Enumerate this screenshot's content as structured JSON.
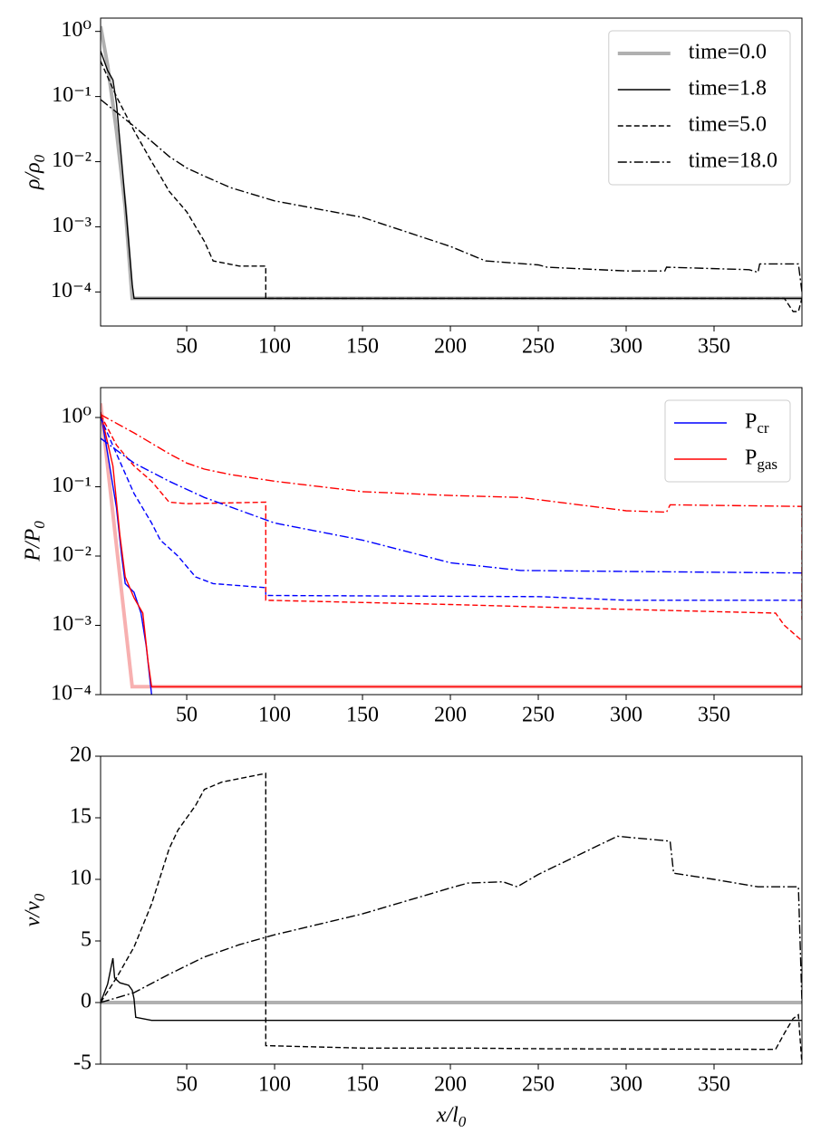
{
  "chart_data": [
    {
      "type": "line",
      "ylabel": "ρ/ρ_0",
      "yscale": "log",
      "legend": "upper right",
      "xlim": [
        1,
        400
      ],
      "xticks": [
        50,
        100,
        150,
        200,
        250,
        300,
        350
      ],
      "ylim": [
        3e-05,
        1.6
      ],
      "yticks": [
        {
          "value": 0.0001,
          "label": "10⁻⁴"
        },
        {
          "value": 0.001,
          "label": "10⁻³"
        },
        {
          "value": 0.01,
          "label": "10⁻²"
        },
        {
          "value": 0.1,
          "label": "10⁻¹"
        },
        {
          "value": 1,
          "label": "10⁰"
        }
      ],
      "series": [
        {
          "name": "time=0.0",
          "color": "#b0b0b0",
          "linestyle": "thick",
          "x": [
            1,
            5,
            10,
            15,
            19,
            400
          ],
          "values": [
            1.2,
            0.3,
            0.03,
            0.002,
            8e-05,
            8e-05
          ]
        },
        {
          "name": "time=1.8",
          "color": "#000000",
          "linestyle": "solid",
          "x": [
            1,
            5,
            8,
            10,
            13,
            16,
            19,
            20,
            400
          ],
          "values": [
            0.5,
            0.25,
            0.18,
            0.08,
            0.01,
            0.0012,
            0.00013,
            8e-05,
            8e-05
          ]
        },
        {
          "name": "time=5.0",
          "color": "#000000",
          "linestyle": "dashed",
          "x": [
            1,
            10,
            20,
            30,
            35,
            40,
            50,
            60,
            65,
            80,
            95,
            95,
            390,
            395,
            398,
            400
          ],
          "values": [
            0.35,
            0.1,
            0.03,
            0.01,
            0.006,
            0.0035,
            0.0017,
            0.0006,
            0.0003,
            0.00025,
            0.00025,
            8e-05,
            8e-05,
            5e-05,
            5e-05,
            8e-05
          ]
        },
        {
          "name": "time=18.0",
          "color": "#000000",
          "linestyle": "dashdot",
          "x": [
            1,
            20,
            40,
            50,
            60,
            75,
            100,
            150,
            200,
            220,
            250,
            255,
            300,
            322,
            323,
            370,
            375,
            376,
            398,
            400
          ],
          "values": [
            0.09,
            0.035,
            0.012,
            0.008,
            0.006,
            0.004,
            0.0025,
            0.0014,
            0.0005,
            0.0003,
            0.00026,
            0.00024,
            0.00021,
            0.00021,
            0.00024,
            0.00022,
            0.0002,
            0.00027,
            0.00027,
            0.0001
          ]
        }
      ]
    },
    {
      "type": "line",
      "ylabel": "P/P_0",
      "yscale": "log",
      "legend": "upper right",
      "xlim": [
        1,
        400
      ],
      "xticks": [
        50,
        100,
        150,
        200,
        250,
        300,
        350
      ],
      "ylim": [
        0.0001,
        2.7
      ],
      "yticks": [
        {
          "value": 0.0001,
          "label": "10⁻⁴"
        },
        {
          "value": 0.001,
          "label": "10⁻³"
        },
        {
          "value": 0.01,
          "label": "10⁻²"
        },
        {
          "value": 0.1,
          "label": "10⁻¹"
        },
        {
          "value": 1,
          "label": "10⁰"
        }
      ],
      "series": [
        {
          "color": "#f7b0b0",
          "linestyle": "thick",
          "x": [
            1,
            19,
            400
          ],
          "values": [
            1.6,
            0.00013,
            0.00013
          ]
        },
        {
          "name": "P_cr",
          "color": "#0000ff",
          "linestyle": "solid",
          "x": [
            1,
            5,
            10,
            13,
            15,
            20,
            24,
            27,
            30,
            31
          ],
          "values": [
            1.2,
            0.3,
            0.05,
            0.01,
            0.004,
            0.003,
            0.0015,
            0.0005,
            0.0001,
            9e-05
          ]
        },
        {
          "name": "P_gas",
          "color": "#ff0000",
          "linestyle": "solid",
          "x": [
            1,
            8,
            12,
            15,
            20,
            25,
            28,
            30,
            400
          ],
          "values": [
            1.2,
            0.2,
            0.02,
            0.005,
            0.0025,
            0.0015,
            0.0003,
            0.00013,
            0.00013
          ]
        },
        {
          "color": "#0000ff",
          "linestyle": "dashed",
          "x": [
            1,
            10,
            20,
            30,
            35,
            45,
            55,
            65,
            95,
            95,
            250,
            300,
            400
          ],
          "values": [
            1.0,
            0.3,
            0.08,
            0.03,
            0.017,
            0.01,
            0.005,
            0.004,
            0.0035,
            0.0027,
            0.0026,
            0.0023,
            0.0023
          ]
        },
        {
          "color": "#ff0000",
          "linestyle": "dashed",
          "x": [
            1,
            10,
            20,
            30,
            40,
            50,
            95,
            95,
            200,
            300,
            385,
            390,
            400
          ],
          "values": [
            1.1,
            0.4,
            0.2,
            0.12,
            0.06,
            0.057,
            0.06,
            0.0023,
            0.002,
            0.0017,
            0.0015,
            0.001,
            0.0006
          ]
        },
        {
          "color": "#0000ff",
          "linestyle": "dashdot",
          "x": [
            1,
            20,
            40,
            60,
            100,
            150,
            200,
            240,
            300,
            400
          ],
          "values": [
            0.5,
            0.22,
            0.12,
            0.07,
            0.03,
            0.017,
            0.008,
            0.0062,
            0.006,
            0.0057
          ]
        },
        {
          "color": "#ff0000",
          "linestyle": "dashdot",
          "x": [
            1,
            20,
            40,
            50,
            60,
            75,
            100,
            150,
            200,
            240,
            300,
            323,
            325,
            400,
            400
          ],
          "values": [
            1.1,
            0.6,
            0.3,
            0.22,
            0.18,
            0.15,
            0.12,
            0.085,
            0.075,
            0.07,
            0.045,
            0.043,
            0.055,
            0.052,
            0.0012
          ]
        }
      ]
    },
    {
      "type": "line",
      "ylabel": "v/v_0",
      "xlabel": "x/l_0",
      "xlim": [
        1,
        400
      ],
      "xticks": [
        50,
        100,
        150,
        200,
        250,
        300,
        350
      ],
      "ylim": [
        -5,
        20
      ],
      "yticks": [
        -5,
        0,
        5,
        10,
        15,
        20
      ],
      "series": [
        {
          "color": "#b0b0b0",
          "linestyle": "thick",
          "x": [
            1,
            400
          ],
          "values": [
            0,
            0
          ]
        },
        {
          "color": "#000000",
          "linestyle": "solid",
          "x": [
            1,
            5,
            8,
            9,
            12,
            17,
            19,
            20,
            21,
            30,
            400
          ],
          "values": [
            0,
            1.5,
            3.6,
            2,
            1.6,
            1.4,
            1.0,
            0.3,
            -1.2,
            -1.45,
            -1.45
          ]
        },
        {
          "color": "#000000",
          "linestyle": "dashed",
          "x": [
            1,
            10,
            20,
            30,
            40,
            45,
            55,
            60,
            70,
            95,
            95,
            150,
            210,
            250,
            385,
            390,
            395,
            398,
            400
          ],
          "values": [
            0,
            2,
            4.5,
            8,
            12.5,
            14,
            16,
            17.3,
            17.9,
            18.6,
            -3.5,
            -3.7,
            -3.7,
            -3.75,
            -3.8,
            -2.5,
            -1.3,
            -1,
            -5
          ]
        },
        {
          "color": "#000000",
          "linestyle": "dashdot",
          "x": [
            1,
            20,
            40,
            60,
            80,
            100,
            150,
            200,
            210,
            230,
            238,
            250,
            295,
            325,
            327,
            350,
            375,
            398,
            400
          ],
          "values": [
            0,
            0.8,
            2.3,
            3.7,
            4.7,
            5.5,
            7.2,
            9.3,
            9.7,
            9.8,
            9.4,
            10.4,
            13.5,
            13.1,
            10.5,
            10,
            9.4,
            9.4,
            0
          ]
        }
      ]
    }
  ]
}
